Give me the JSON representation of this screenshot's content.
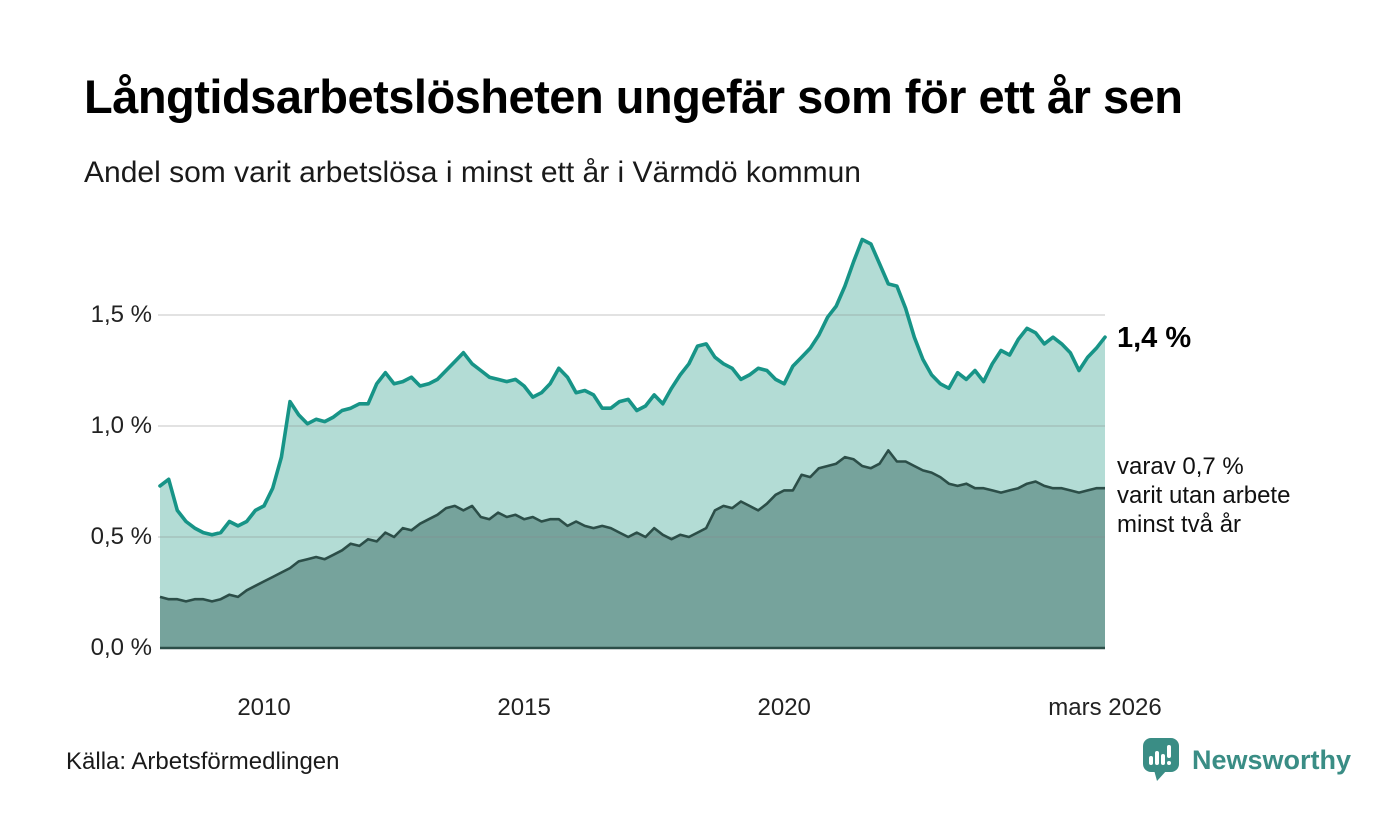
{
  "header": {
    "title": "Långtidsarbetslösheten ungefär som för ett år sen",
    "subtitle": "Andel som varit arbetslösa i minst ett år i Värmdö kommun"
  },
  "chart_data": {
    "type": "area",
    "title": "Långtidsarbetslösheten ungefär som för ett år sen",
    "subtitle": "Andel som varit arbetslösa i minst ett år i Värmdö kommun",
    "x_start": 2008.0,
    "x_end": 2026.1667,
    "x_unit": "year, monthly data",
    "ylim": [
      0,
      1.9
    ],
    "grid": true,
    "x_ticks": [
      {
        "value": 2010,
        "label": "2010"
      },
      {
        "value": 2015,
        "label": "2015"
      },
      {
        "value": 2020,
        "label": "2020"
      },
      {
        "value": 2026.1667,
        "label": "mars 2026"
      }
    ],
    "y_ticks": [
      {
        "value": 0.0,
        "label": "0,0 %"
      },
      {
        "value": 0.5,
        "label": "0,5 %"
      },
      {
        "value": 1.0,
        "label": "1,0 %"
      },
      {
        "value": 1.5,
        "label": "1,5 %"
      }
    ],
    "gridline_color": "#d6d6d6",
    "series": [
      {
        "name": "Andel arbetslösa minst ett år",
        "line_color": "#179487",
        "fill_color": "#b3dcd5",
        "end_value": 1.4,
        "end_label": "1,4 %",
        "values": [
          0.73,
          0.76,
          0.62,
          0.57,
          0.54,
          0.52,
          0.51,
          0.52,
          0.57,
          0.55,
          0.57,
          0.62,
          0.64,
          0.72,
          0.86,
          1.11,
          1.05,
          1.01,
          1.03,
          1.02,
          1.04,
          1.07,
          1.08,
          1.1,
          1.1,
          1.19,
          1.24,
          1.19,
          1.2,
          1.22,
          1.18,
          1.19,
          1.21,
          1.25,
          1.29,
          1.33,
          1.28,
          1.25,
          1.22,
          1.21,
          1.2,
          1.21,
          1.18,
          1.13,
          1.15,
          1.19,
          1.26,
          1.22,
          1.15,
          1.16,
          1.14,
          1.08,
          1.08,
          1.11,
          1.12,
          1.07,
          1.09,
          1.14,
          1.1,
          1.17,
          1.23,
          1.28,
          1.36,
          1.37,
          1.31,
          1.28,
          1.26,
          1.21,
          1.23,
          1.26,
          1.25,
          1.21,
          1.19,
          1.27,
          1.31,
          1.35,
          1.41,
          1.49,
          1.54,
          1.63,
          1.74,
          1.84,
          1.82,
          1.73,
          1.64,
          1.63,
          1.53,
          1.4,
          1.3,
          1.23,
          1.19,
          1.17,
          1.24,
          1.21,
          1.25,
          1.2,
          1.28,
          1.34,
          1.32,
          1.39,
          1.44,
          1.42,
          1.37,
          1.4,
          1.37,
          1.33,
          1.25,
          1.31,
          1.35,
          1.4
        ]
      },
      {
        "name": "varav utan arbete minst två år",
        "line_color": "#2c4e48",
        "fill_color": "#76a39c",
        "end_value": 0.7,
        "end_label_lines": [
          "varav 0,7 %",
          "varit utan arbete",
          "minst två år"
        ],
        "values": [
          0.23,
          0.22,
          0.22,
          0.21,
          0.22,
          0.22,
          0.21,
          0.22,
          0.24,
          0.23,
          0.26,
          0.28,
          0.3,
          0.32,
          0.34,
          0.36,
          0.39,
          0.4,
          0.41,
          0.4,
          0.42,
          0.44,
          0.47,
          0.46,
          0.49,
          0.48,
          0.52,
          0.5,
          0.54,
          0.53,
          0.56,
          0.58,
          0.6,
          0.63,
          0.64,
          0.62,
          0.64,
          0.59,
          0.58,
          0.61,
          0.59,
          0.6,
          0.58,
          0.59,
          0.57,
          0.58,
          0.58,
          0.55,
          0.57,
          0.55,
          0.54,
          0.55,
          0.54,
          0.52,
          0.5,
          0.52,
          0.5,
          0.54,
          0.51,
          0.49,
          0.51,
          0.5,
          0.52,
          0.54,
          0.62,
          0.64,
          0.63,
          0.66,
          0.64,
          0.62,
          0.65,
          0.69,
          0.71,
          0.71,
          0.78,
          0.77,
          0.81,
          0.82,
          0.83,
          0.86,
          0.85,
          0.82,
          0.81,
          0.83,
          0.89,
          0.84,
          0.84,
          0.82,
          0.8,
          0.79,
          0.77,
          0.74,
          0.73,
          0.74,
          0.72,
          0.72,
          0.71,
          0.7,
          0.71,
          0.72,
          0.74,
          0.75,
          0.73,
          0.72,
          0.72,
          0.71,
          0.7,
          0.71,
          0.72,
          0.72
        ]
      }
    ]
  },
  "footer": {
    "source": "Källa: Arbetsförmedlingen",
    "brand": "Newsworthy",
    "brand_color": "#3a8d85"
  }
}
